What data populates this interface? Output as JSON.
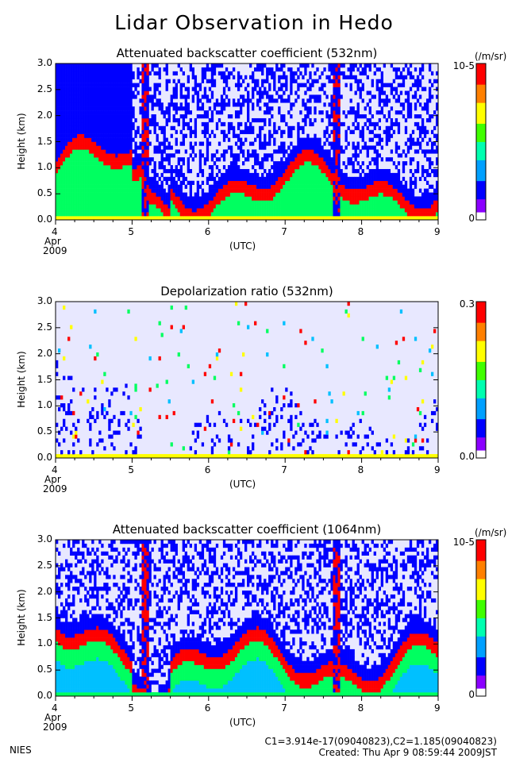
{
  "page_title": "Lidar Observation in Hedo",
  "footer": {
    "org": "NIES",
    "calib": "C1=3.914e-17(09040823),C2=1.185(09040823)",
    "created": "Created: Thu Apr  9 08:59:44 2009JST"
  },
  "chart_data": [
    {
      "type": "heatmap",
      "title": "Attenuated backscatter coefficient (532nm)",
      "ylabel": "Height (km)",
      "xlabel": "(UTC)",
      "x_ticks": [
        "4",
        "5",
        "6",
        "7",
        "8",
        "9"
      ],
      "x_sub": [
        "Apr",
        "2009"
      ],
      "y_ticks": [
        "0.0",
        "0.5",
        "1.0",
        "1.5",
        "2.0",
        "2.5",
        "3.0"
      ],
      "xlim": [
        4,
        9
      ],
      "ylim": [
        0,
        3
      ],
      "colorbar": {
        "unit": "(/m/sr)",
        "max": "10-5",
        "min": "0",
        "log": false
      },
      "colors": [
        "#e8e8ff",
        "#0000ff",
        "#00c0ff",
        "#00ff60",
        "#ffff00",
        "#ff0000"
      ]
    },
    {
      "type": "heatmap",
      "title": "Depolarization ratio (532nm)",
      "ylabel": "Height (km)",
      "xlabel": "(UTC)",
      "x_ticks": [
        "4",
        "5",
        "6",
        "7",
        "8",
        "9"
      ],
      "x_sub": [
        "Apr",
        "2009"
      ],
      "y_ticks": [
        "0.0",
        "0.5",
        "1.0",
        "1.5",
        "2.0",
        "2.5",
        "3.0"
      ],
      "xlim": [
        4,
        9
      ],
      "ylim": [
        0,
        3
      ],
      "colorbar": {
        "unit": "",
        "max": "0.3",
        "min": "0.0"
      },
      "colors": [
        "#e8e8ff",
        "#0000ff",
        "#00c0ff",
        "#00ff60",
        "#ffff00",
        "#ff0000"
      ]
    },
    {
      "type": "heatmap",
      "title": "Attenuated backscatter coefficient (1064nm)",
      "ylabel": "Height (km)",
      "xlabel": "(UTC)",
      "x_ticks": [
        "4",
        "5",
        "6",
        "7",
        "8",
        "9"
      ],
      "x_sub": [
        "Apr",
        "2009"
      ],
      "y_ticks": [
        "0.0",
        "0.5",
        "1.0",
        "1.5",
        "2.0",
        "2.5",
        "3.0"
      ],
      "xlim": [
        4,
        9
      ],
      "ylim": [
        0,
        3
      ],
      "colorbar": {
        "unit": "(/m/sr)",
        "max": "10-5",
        "min": "0"
      },
      "colors": [
        "#e8e8ff",
        "#0000ff",
        "#00c0ff",
        "#00ff60",
        "#ffff00",
        "#ff0000"
      ]
    }
  ]
}
